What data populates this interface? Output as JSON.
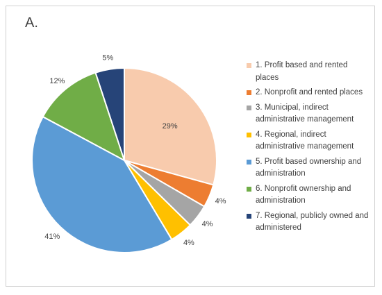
{
  "panel_label": "A.",
  "chart_data": {
    "type": "pie",
    "title": "",
    "slices": [
      {
        "label": "1. Profit based and rented places",
        "value": 29,
        "display": "29%",
        "color": "#f8cbad"
      },
      {
        "label": "2. Nonprofit and rented places",
        "value": 4,
        "display": "4%",
        "color": "#ed7d31"
      },
      {
        "label": "3. Municipal, indirect administrative management",
        "value": 4,
        "display": "4%",
        "color": "#a5a5a5"
      },
      {
        "label": "4. Regional, indirect administrative management",
        "value": 4,
        "display": "4%",
        "color": "#ffc000"
      },
      {
        "label": "5. Profit based ownership and administration",
        "value": 41,
        "display": "41%",
        "color": "#5b9bd5"
      },
      {
        "label": "6. Nonprofit ownership and administration",
        "value": 12,
        "display": "12%",
        "color": "#70ad47"
      },
      {
        "label": "7. Regional, publicly owned and administered",
        "value": 5,
        "display": "5%",
        "color": "#264478"
      }
    ],
    "legend_position": "right"
  }
}
